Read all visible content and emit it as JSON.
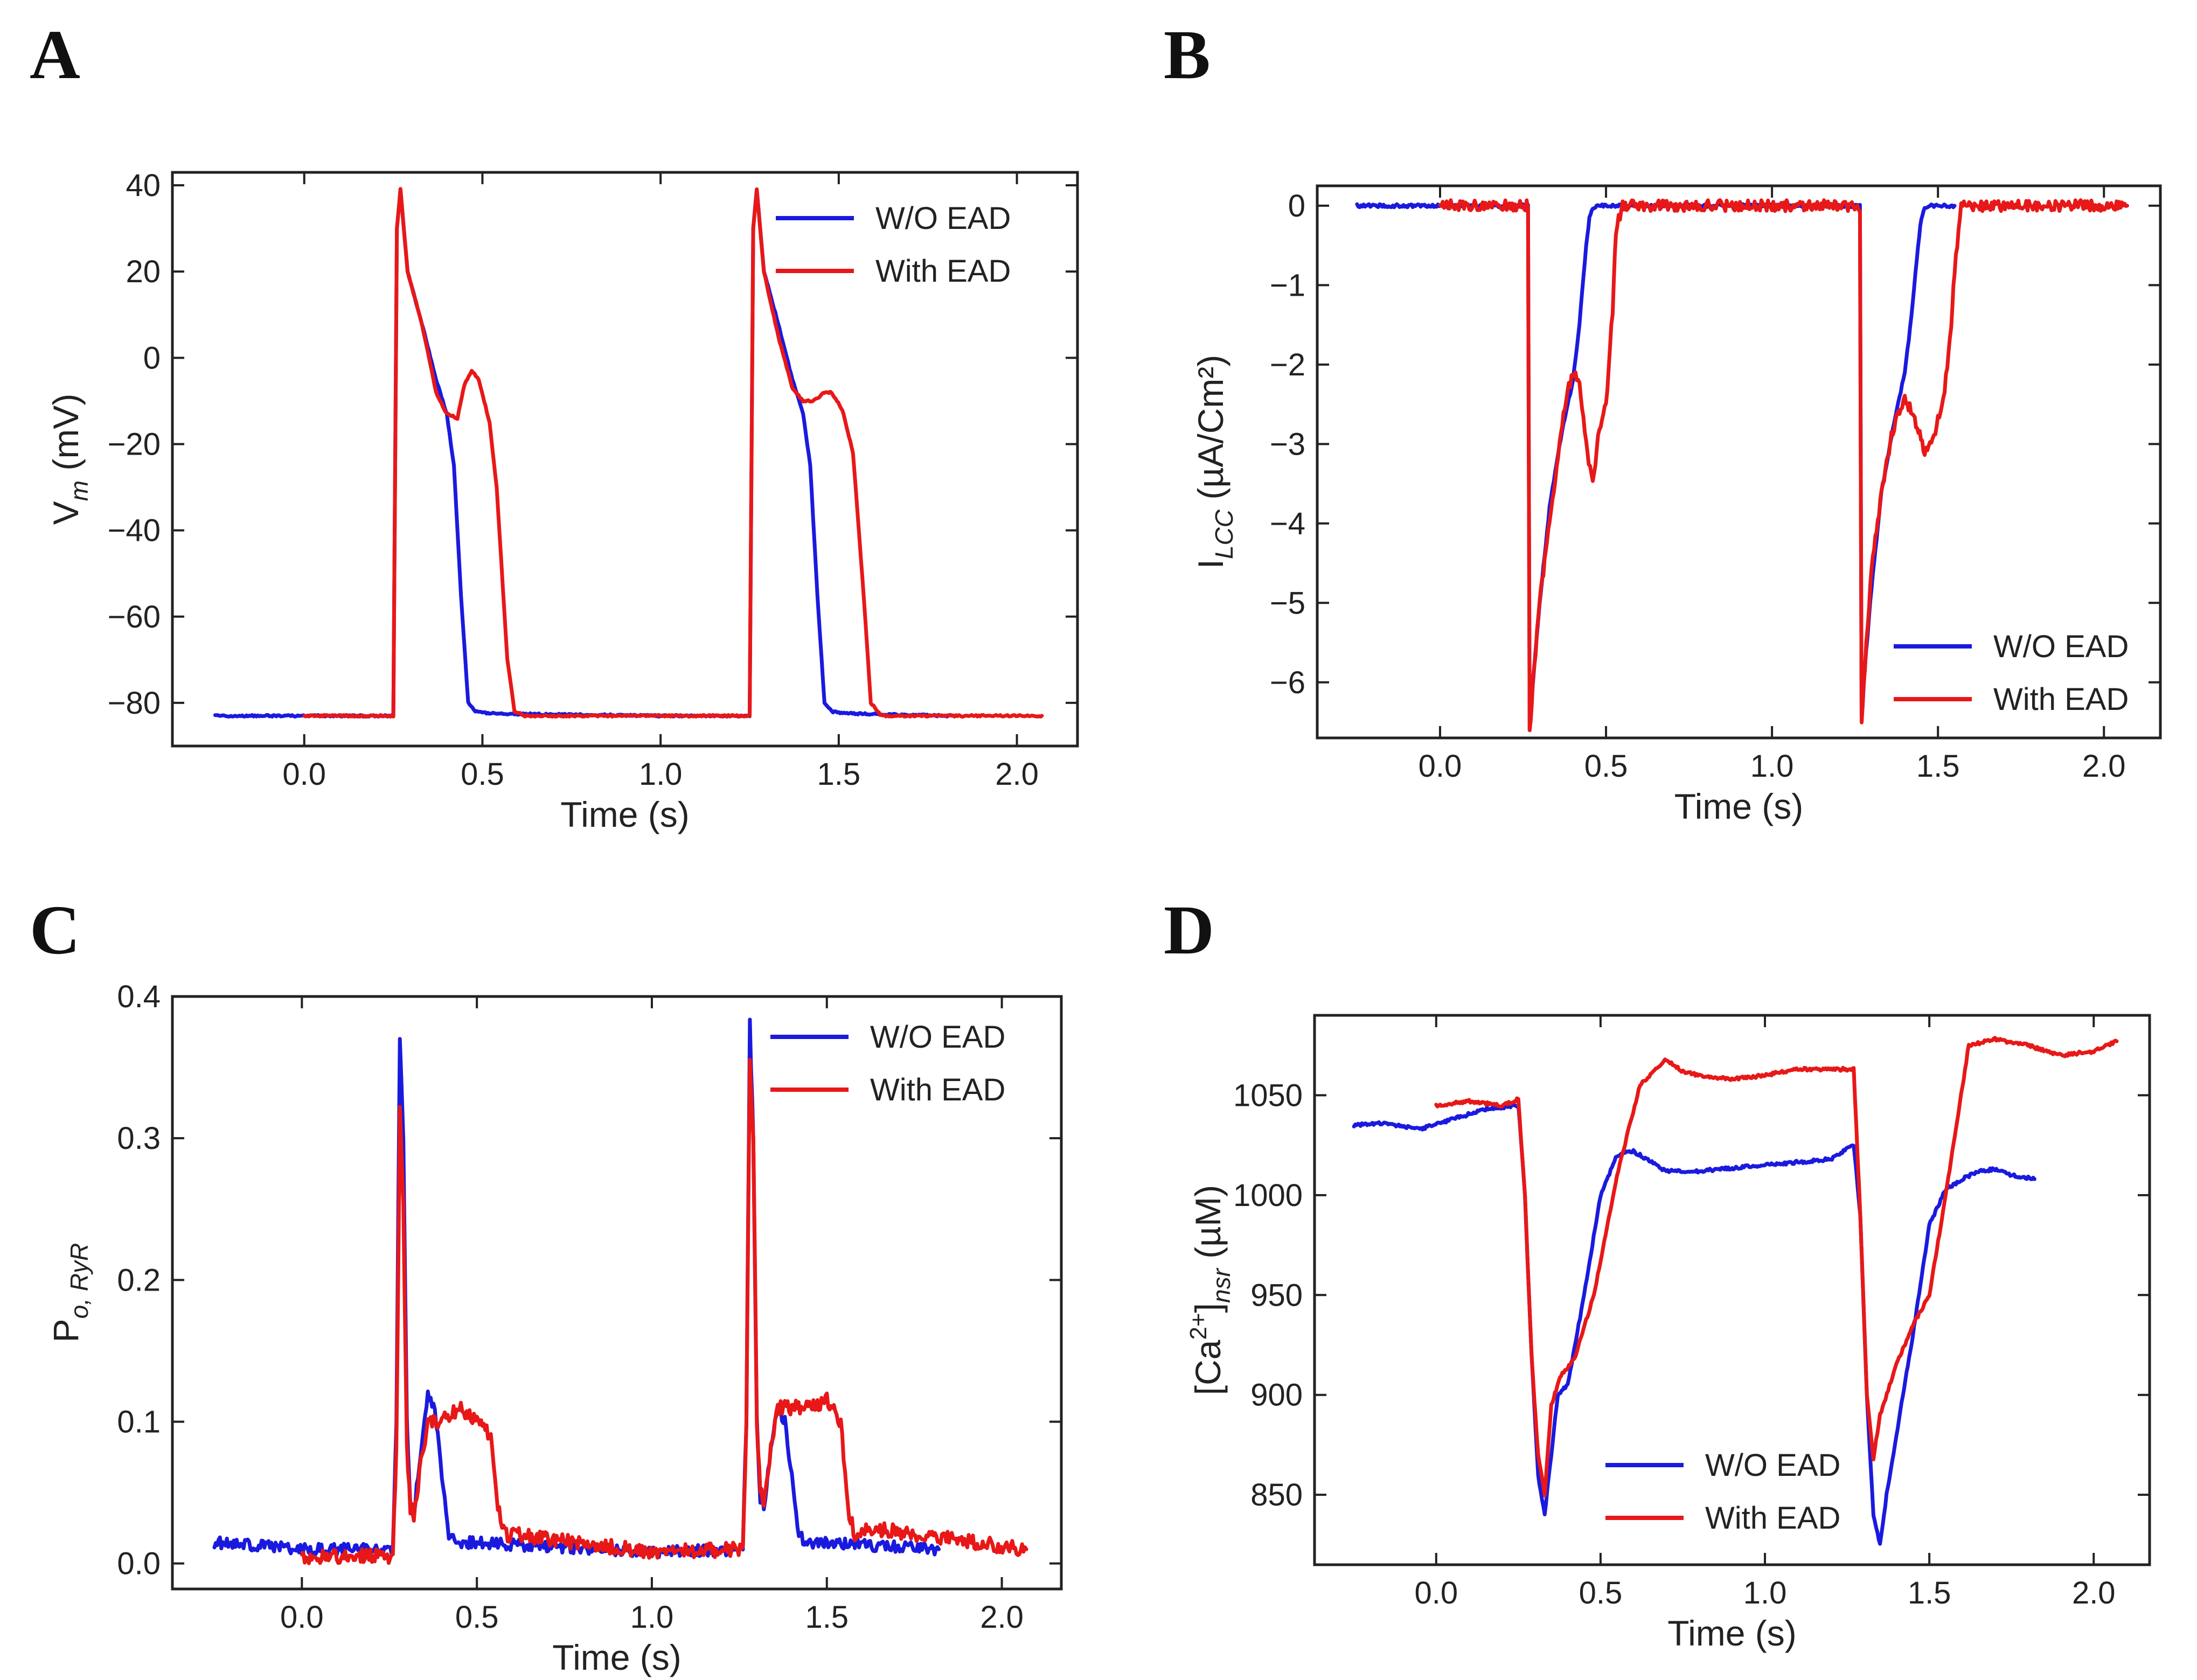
{
  "chart_data": [
    {
      "panel": "A",
      "type": "line",
      "xlabel": "Time (s)",
      "ylabel": "V",
      "ylabel_sub": "m",
      "ylabel_suffix": " (mV)",
      "xlim": [
        -0.37,
        2.17
      ],
      "ylim": [
        -90,
        43
      ],
      "xticks": [
        0.0,
        0.5,
        1.0,
        1.5,
        2.0
      ],
      "xtick_labels": [
        "0.0",
        "0.5",
        "1.0",
        "1.5",
        "2.0"
      ],
      "yticks": [
        -80,
        -60,
        -40,
        -20,
        0,
        20,
        40
      ],
      "ytick_labels": [
        "−80",
        "−60",
        "−40",
        "−20",
        "0",
        "20",
        "40"
      ],
      "legend_position": "top-right",
      "series": [
        {
          "name": "W/O EAD",
          "color": "#1a1adf",
          "noise": 0.2,
          "x": [
            -0.25,
            0.25,
            0.26,
            0.27,
            0.29,
            0.33,
            0.37,
            0.4,
            0.42,
            0.44,
            0.46,
            0.48,
            0.5,
            0.55,
            1.0,
            1.25,
            1.26,
            1.27,
            1.29,
            1.33,
            1.37,
            1.4,
            1.42,
            1.44,
            1.46,
            1.48,
            1.5,
            1.55,
            1.82
          ],
          "y": [
            -83,
            -83,
            30,
            39,
            20,
            8,
            -5,
            -13,
            -25,
            -55,
            -80,
            -82,
            -82.3,
            -82.5,
            -83,
            -83,
            30,
            39,
            20,
            8,
            -5,
            -13,
            -25,
            -55,
            -80,
            -82,
            -82.3,
            -82.5,
            -83
          ]
        },
        {
          "name": "With EAD",
          "color": "#e81818",
          "noise": 0.2,
          "x": [
            0.0,
            0.25,
            0.26,
            0.27,
            0.29,
            0.33,
            0.37,
            0.4,
            0.43,
            0.45,
            0.47,
            0.49,
            0.52,
            0.54,
            0.57,
            0.59,
            0.62,
            1.0,
            1.25,
            1.26,
            1.27,
            1.29,
            1.33,
            1.37,
            1.4,
            1.43,
            1.46,
            1.48,
            1.51,
            1.54,
            1.57,
            1.59,
            1.62,
            2.07
          ],
          "y": [
            -83,
            -83,
            30,
            39,
            20,
            8,
            -8,
            -13,
            -14,
            -6,
            -3,
            -5,
            -15,
            -30,
            -70,
            -82,
            -83,
            -83,
            -83,
            30,
            39,
            20,
            5,
            -7,
            -10,
            -10,
            -8,
            -8,
            -12,
            -22,
            -55,
            -80,
            -83,
            -83
          ]
        }
      ]
    },
    {
      "panel": "B",
      "type": "line",
      "xlabel": "Time (s)",
      "ylabel": "I",
      "ylabel_sub": "LCC",
      "ylabel_suffix": " (µA/Cm²)",
      "xlim": [
        -0.37,
        2.17
      ],
      "ylim": [
        -6.7,
        0.25
      ],
      "xticks": [
        0.0,
        0.5,
        1.0,
        1.5,
        2.0
      ],
      "xtick_labels": [
        "0.0",
        "0.5",
        "1.0",
        "1.5",
        "2.0"
      ],
      "yticks": [
        -6,
        -5,
        -4,
        -3,
        -2,
        -1,
        0
      ],
      "ytick_labels": [
        "−6",
        "−5",
        "−4",
        "−3",
        "−2",
        "−1",
        "0"
      ],
      "legend_position": "bottom-right",
      "series": [
        {
          "name": "W/O EAD",
          "color": "#1a1adf",
          "noise": 0.02,
          "x": [
            -0.25,
            0.265,
            0.27,
            0.28,
            0.3,
            0.33,
            0.36,
            0.38,
            0.4,
            0.42,
            0.44,
            0.45,
            0.46,
            0.48,
            1.0,
            1.265,
            1.27,
            1.28,
            1.3,
            1.33,
            1.36,
            1.38,
            1.4,
            1.42,
            1.44,
            1.45,
            1.46,
            1.48,
            1.55
          ],
          "y": [
            0,
            0,
            -6.6,
            -6.0,
            -5.0,
            -3.8,
            -3.0,
            -2.6,
            -2.2,
            -1.5,
            -0.5,
            -0.15,
            -0.02,
            0,
            0,
            0,
            -6.5,
            -5.8,
            -4.8,
            -3.6,
            -2.9,
            -2.5,
            -2.1,
            -1.4,
            -0.5,
            -0.15,
            -0.02,
            0,
            0
          ]
        },
        {
          "name": "With EAD",
          "color": "#e81818",
          "noise": 0.07,
          "x": [
            0.0,
            0.265,
            0.27,
            0.28,
            0.3,
            0.33,
            0.36,
            0.38,
            0.4,
            0.42,
            0.44,
            0.46,
            0.48,
            0.5,
            0.52,
            0.53,
            0.55,
            1.0,
            1.265,
            1.27,
            1.28,
            1.3,
            1.33,
            1.36,
            1.38,
            1.4,
            1.43,
            1.46,
            1.48,
            1.5,
            1.52,
            1.54,
            1.55,
            1.57,
            2.07
          ],
          "y": [
            0,
            0,
            -6.6,
            -6.0,
            -5.0,
            -4.0,
            -3.0,
            -2.4,
            -2.1,
            -2.2,
            -3.0,
            -3.5,
            -2.8,
            -2.5,
            -1.3,
            -0.3,
            0,
            0,
            0,
            -6.5,
            -5.8,
            -4.6,
            -3.6,
            -2.9,
            -2.6,
            -2.4,
            -2.7,
            -3.1,
            -3.0,
            -2.7,
            -2.3,
            -1.5,
            -0.8,
            0,
            0
          ]
        }
      ]
    },
    {
      "panel": "C",
      "type": "line",
      "xlabel": "Time (s)",
      "ylabel": "P",
      "ylabel_sub": "o, RyR",
      "ylabel_suffix": "",
      "xlim": [
        -0.37,
        2.17
      ],
      "ylim": [
        -0.018,
        0.4
      ],
      "xticks": [
        0.0,
        0.5,
        1.0,
        1.5,
        2.0
      ],
      "xtick_labels": [
        "0.0",
        "0.5",
        "1.0",
        "1.5",
        "2.0"
      ],
      "yticks": [
        0.0,
        0.1,
        0.2,
        0.3,
        0.4
      ],
      "ytick_labels": [
        "0.0",
        "0.1",
        "0.2",
        "0.3",
        "0.4"
      ],
      "legend_position": "top-right",
      "series": [
        {
          "name": "W/O EAD",
          "color": "#1a1adf",
          "noise": 0.004,
          "x": [
            -0.25,
            0.0,
            0.26,
            0.27,
            0.28,
            0.29,
            0.3,
            0.31,
            0.32,
            0.34,
            0.36,
            0.38,
            0.4,
            0.42,
            0.44,
            0.46,
            1.0,
            1.26,
            1.27,
            1.28,
            1.29,
            1.3,
            1.31,
            1.32,
            1.34,
            1.36,
            1.38,
            1.4,
            1.42,
            1.44,
            1.46,
            1.82
          ],
          "y": [
            0.015,
            0.01,
            0.01,
            0.1,
            0.37,
            0.3,
            0.1,
            0.04,
            0.035,
            0.08,
            0.12,
            0.11,
            0.06,
            0.02,
            0.015,
            0.015,
            0.008,
            0.01,
            0.1,
            0.38,
            0.3,
            0.1,
            0.045,
            0.04,
            0.08,
            0.11,
            0.1,
            0.06,
            0.02,
            0.015,
            0.015,
            0.01
          ]
        },
        {
          "name": "With EAD",
          "color": "#e81818",
          "noise": 0.005,
          "x": [
            0.0,
            0.26,
            0.27,
            0.28,
            0.29,
            0.3,
            0.31,
            0.32,
            0.34,
            0.36,
            0.4,
            0.45,
            0.5,
            0.54,
            0.56,
            0.58,
            0.62,
            1.0,
            1.26,
            1.27,
            1.28,
            1.29,
            1.3,
            1.31,
            1.32,
            1.34,
            1.36,
            1.4,
            1.45,
            1.5,
            1.54,
            1.56,
            1.58,
            1.62,
            2.07
          ],
          "y": [
            0.005,
            0.005,
            0.08,
            0.32,
            0.25,
            0.08,
            0.04,
            0.035,
            0.07,
            0.1,
            0.1,
            0.11,
            0.1,
            0.09,
            0.04,
            0.02,
            0.02,
            0.008,
            0.01,
            0.1,
            0.36,
            0.3,
            0.1,
            0.05,
            0.045,
            0.08,
            0.11,
            0.11,
            0.11,
            0.115,
            0.1,
            0.04,
            0.02,
            0.025,
            0.01
          ]
        }
      ]
    },
    {
      "panel": "D",
      "type": "line",
      "xlabel": "Time (s)",
      "ylabel": "[Ca",
      "ylabel_sup": "2+",
      "ylabel_mid": "]",
      "ylabel_sub": "nsr",
      "ylabel_suffix": " (µM)",
      "xlim": [
        -0.37,
        2.17
      ],
      "ylim": [
        815,
        1090
      ],
      "xticks": [
        0.0,
        0.5,
        1.0,
        1.5,
        2.0
      ],
      "xtick_labels": [
        "0.0",
        "0.5",
        "1.0",
        "1.5",
        "2.0"
      ],
      "yticks": [
        850,
        900,
        950,
        1000,
        1050
      ],
      "ytick_labels": [
        "850",
        "900",
        "950",
        "1000",
        "1050"
      ],
      "legend_position": "bottom-center",
      "series": [
        {
          "name": "W/O EAD",
          "color": "#1a1adf",
          "noise": 0.8,
          "x": [
            -0.25,
            -0.15,
            -0.05,
            0.05,
            0.15,
            0.25,
            0.27,
            0.29,
            0.31,
            0.33,
            0.35,
            0.37,
            0.4,
            0.45,
            0.5,
            0.55,
            0.6,
            0.7,
            0.8,
            1.0,
            1.2,
            1.27,
            1.29,
            1.31,
            1.33,
            1.35,
            1.37,
            1.4,
            1.45,
            1.5,
            1.55,
            1.6,
            1.65,
            1.7,
            1.75,
            1.82
          ],
          "y": [
            1035,
            1036,
            1033,
            1038,
            1043,
            1045,
            1000,
            920,
            860,
            840,
            870,
            900,
            905,
            950,
            1000,
            1020,
            1022,
            1012,
            1012,
            1015,
            1018,
            1025,
            990,
            900,
            840,
            825,
            850,
            880,
            930,
            985,
            1003,
            1008,
            1012,
            1013,
            1010,
            1008
          ]
        },
        {
          "name": "With EAD",
          "color": "#e81818",
          "noise": 0.8,
          "x": [
            0.0,
            0.1,
            0.2,
            0.25,
            0.27,
            0.29,
            0.31,
            0.33,
            0.35,
            0.38,
            0.42,
            0.48,
            0.55,
            0.62,
            0.7,
            0.75,
            0.8,
            0.9,
            1.0,
            1.1,
            1.27,
            1.29,
            1.31,
            1.33,
            1.35,
            1.4,
            1.45,
            1.5,
            1.55,
            1.62,
            1.7,
            1.8,
            1.9,
            2.0,
            2.07
          ],
          "y": [
            1045,
            1047,
            1045,
            1048,
            1000,
            920,
            870,
            850,
            895,
            910,
            918,
            950,
            1010,
            1055,
            1068,
            1062,
            1060,
            1058,
            1060,
            1063,
            1063,
            990,
            900,
            868,
            890,
            915,
            935,
            950,
            1000,
            1075,
            1078,
            1075,
            1070,
            1072,
            1077
          ]
        }
      ]
    }
  ]
}
